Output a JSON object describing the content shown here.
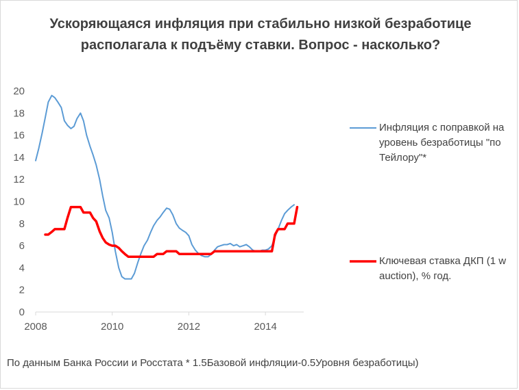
{
  "chart_data": {
    "type": "line",
    "title": "Ускоряющаяся инфляция при стабильно низкой безработице располагала к подъёму ставки. Вопрос - насколько?",
    "xlim": [
      2008,
      2015
    ],
    "ylim": [
      0,
      20
    ],
    "x_ticks": [
      "2008",
      "2010",
      "2012",
      "2014"
    ],
    "y_ticks": [
      "0",
      "2",
      "4",
      "6",
      "8",
      "10",
      "12",
      "14",
      "16",
      "18",
      "20"
    ],
    "grid": false,
    "legend_position": "right",
    "series": [
      {
        "name": "Инфляция с поправкой на уровень безработицы \"по Тейлору\"*",
        "color": "#5b9bd5",
        "points": [
          [
            2008.0,
            13.7
          ],
          [
            2008.08,
            14.8
          ],
          [
            2008.17,
            16.2
          ],
          [
            2008.25,
            17.6
          ],
          [
            2008.33,
            19.0
          ],
          [
            2008.42,
            19.6
          ],
          [
            2008.5,
            19.4
          ],
          [
            2008.58,
            19.0
          ],
          [
            2008.67,
            18.5
          ],
          [
            2008.75,
            17.3
          ],
          [
            2008.83,
            16.9
          ],
          [
            2008.92,
            16.6
          ],
          [
            2009.0,
            16.8
          ],
          [
            2009.08,
            17.5
          ],
          [
            2009.17,
            18.0
          ],
          [
            2009.25,
            17.3
          ],
          [
            2009.33,
            16.0
          ],
          [
            2009.42,
            15.0
          ],
          [
            2009.5,
            14.2
          ],
          [
            2009.58,
            13.3
          ],
          [
            2009.67,
            12.0
          ],
          [
            2009.75,
            10.5
          ],
          [
            2009.83,
            9.2
          ],
          [
            2009.92,
            8.5
          ],
          [
            2010.0,
            7.2
          ],
          [
            2010.08,
            5.5
          ],
          [
            2010.17,
            4.0
          ],
          [
            2010.25,
            3.2
          ],
          [
            2010.33,
            3.0
          ],
          [
            2010.42,
            3.0
          ],
          [
            2010.5,
            3.0
          ],
          [
            2010.58,
            3.5
          ],
          [
            2010.67,
            4.5
          ],
          [
            2010.75,
            5.3
          ],
          [
            2010.83,
            6.0
          ],
          [
            2010.92,
            6.5
          ],
          [
            2011.0,
            7.2
          ],
          [
            2011.08,
            7.8
          ],
          [
            2011.17,
            8.3
          ],
          [
            2011.25,
            8.6
          ],
          [
            2011.33,
            9.0
          ],
          [
            2011.42,
            9.4
          ],
          [
            2011.5,
            9.3
          ],
          [
            2011.58,
            8.8
          ],
          [
            2011.67,
            8.0
          ],
          [
            2011.75,
            7.6
          ],
          [
            2011.83,
            7.4
          ],
          [
            2011.92,
            7.2
          ],
          [
            2012.0,
            6.9
          ],
          [
            2012.08,
            6.1
          ],
          [
            2012.17,
            5.6
          ],
          [
            2012.25,
            5.3
          ],
          [
            2012.33,
            5.1
          ],
          [
            2012.42,
            5.0
          ],
          [
            2012.5,
            5.0
          ],
          [
            2012.58,
            5.2
          ],
          [
            2012.67,
            5.6
          ],
          [
            2012.75,
            5.9
          ],
          [
            2012.83,
            6.0
          ],
          [
            2012.92,
            6.1
          ],
          [
            2013.0,
            6.1
          ],
          [
            2013.08,
            6.2
          ],
          [
            2013.17,
            6.0
          ],
          [
            2013.25,
            6.1
          ],
          [
            2013.33,
            5.9
          ],
          [
            2013.42,
            6.0
          ],
          [
            2013.5,
            6.1
          ],
          [
            2013.58,
            5.9
          ],
          [
            2013.67,
            5.6
          ],
          [
            2013.75,
            5.5
          ],
          [
            2013.83,
            5.5
          ],
          [
            2013.92,
            5.6
          ],
          [
            2014.0,
            5.6
          ],
          [
            2014.08,
            5.7
          ],
          [
            2014.17,
            6.0
          ],
          [
            2014.25,
            6.8
          ],
          [
            2014.33,
            7.5
          ],
          [
            2014.42,
            8.3
          ],
          [
            2014.5,
            8.9
          ],
          [
            2014.58,
            9.2
          ],
          [
            2014.67,
            9.5
          ],
          [
            2014.75,
            9.7
          ]
        ]
      },
      {
        "name": "Ключевая ставка ДКП (1 w auction), % год.",
        "color": "#ff0000",
        "points": [
          [
            2008.25,
            7.0
          ],
          [
            2008.33,
            7.0
          ],
          [
            2008.42,
            7.25
          ],
          [
            2008.5,
            7.5
          ],
          [
            2008.58,
            7.5
          ],
          [
            2008.67,
            7.5
          ],
          [
            2008.75,
            7.5
          ],
          [
            2008.83,
            8.5
          ],
          [
            2008.92,
            9.5
          ],
          [
            2009.0,
            9.5
          ],
          [
            2009.08,
            9.5
          ],
          [
            2009.17,
            9.5
          ],
          [
            2009.25,
            9.0
          ],
          [
            2009.33,
            9.0
          ],
          [
            2009.42,
            9.0
          ],
          [
            2009.5,
            8.5
          ],
          [
            2009.58,
            8.2
          ],
          [
            2009.67,
            7.3
          ],
          [
            2009.75,
            6.7
          ],
          [
            2009.83,
            6.3
          ],
          [
            2009.92,
            6.1
          ],
          [
            2010.0,
            6.0
          ],
          [
            2010.08,
            6.0
          ],
          [
            2010.17,
            5.8
          ],
          [
            2010.25,
            5.5
          ],
          [
            2010.33,
            5.25
          ],
          [
            2010.42,
            5.0
          ],
          [
            2010.5,
            5.0
          ],
          [
            2010.58,
            5.0
          ],
          [
            2010.67,
            5.0
          ],
          [
            2010.75,
            5.0
          ],
          [
            2010.83,
            5.0
          ],
          [
            2010.92,
            5.0
          ],
          [
            2011.0,
            5.0
          ],
          [
            2011.08,
            5.0
          ],
          [
            2011.17,
            5.25
          ],
          [
            2011.25,
            5.25
          ],
          [
            2011.33,
            5.25
          ],
          [
            2011.42,
            5.5
          ],
          [
            2011.5,
            5.5
          ],
          [
            2011.58,
            5.5
          ],
          [
            2011.67,
            5.5
          ],
          [
            2011.75,
            5.25
          ],
          [
            2011.83,
            5.25
          ],
          [
            2011.92,
            5.25
          ],
          [
            2012.0,
            5.25
          ],
          [
            2012.08,
            5.25
          ],
          [
            2012.17,
            5.25
          ],
          [
            2012.25,
            5.25
          ],
          [
            2012.33,
            5.25
          ],
          [
            2012.42,
            5.25
          ],
          [
            2012.5,
            5.25
          ],
          [
            2012.58,
            5.25
          ],
          [
            2012.67,
            5.5
          ],
          [
            2012.75,
            5.5
          ],
          [
            2012.83,
            5.5
          ],
          [
            2012.92,
            5.5
          ],
          [
            2013.0,
            5.5
          ],
          [
            2013.25,
            5.5
          ],
          [
            2013.5,
            5.5
          ],
          [
            2013.75,
            5.5
          ],
          [
            2013.92,
            5.5
          ],
          [
            2014.08,
            5.5
          ],
          [
            2014.17,
            5.5
          ],
          [
            2014.25,
            7.0
          ],
          [
            2014.33,
            7.5
          ],
          [
            2014.42,
            7.5
          ],
          [
            2014.5,
            7.5
          ],
          [
            2014.58,
            8.0
          ],
          [
            2014.67,
            8.0
          ],
          [
            2014.75,
            8.0
          ],
          [
            2014.83,
            9.5
          ]
        ]
      }
    ]
  },
  "legend": {
    "item1": "Инфляция с поправкой на уровень безработицы \"по Тейлору\"*",
    "item2": "Ключевая ставка ДКП (1 w auction), % год."
  },
  "footnote": "По данным Банка России и Росстата  * 1.5Базовой инфляции-0.5Уровня безработицы)"
}
